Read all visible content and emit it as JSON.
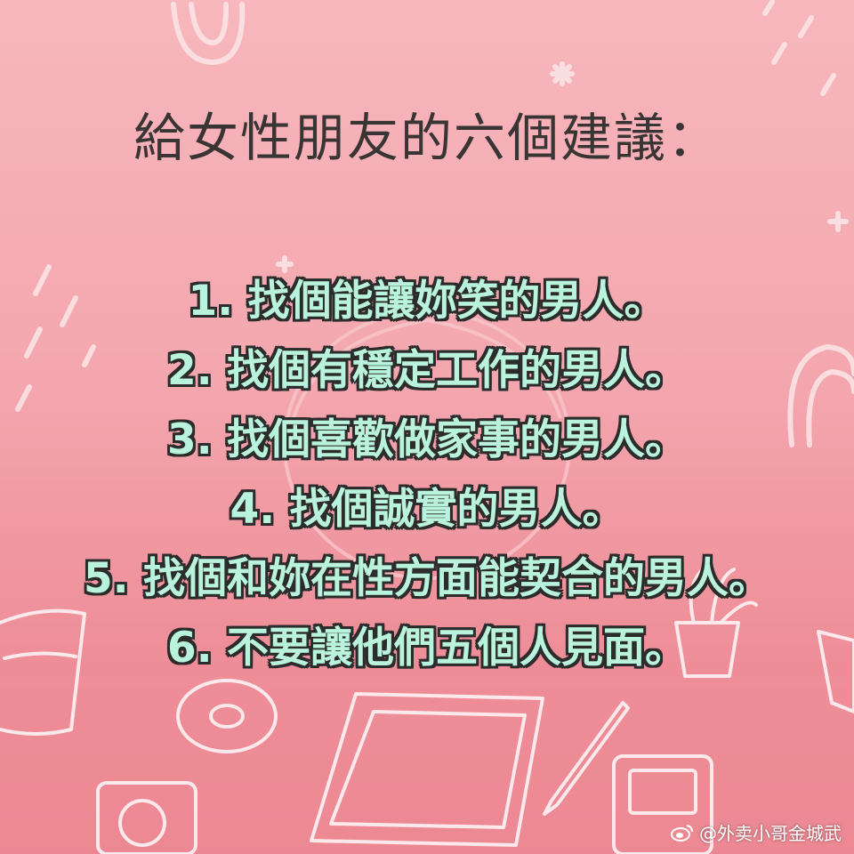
{
  "title": "給女性朋友的六個建議：",
  "tips": [
    "1. 找個能讓妳笑的男人。",
    "2. 找個有穩定工作的男人。",
    "3. 找個喜歡做家事的男人。",
    "4. 找個誠實的男人。",
    "5. 找個和妳在性方面能契合的男人。",
    "6. 不要讓他們五個人見面。"
  ],
  "watermark": "@外卖小哥金城武",
  "icons": {
    "watermark": "weibo-logo-icon"
  },
  "colors": {
    "background": "#f4a6ae",
    "title_text": "#3a3535",
    "tip_text": "#b9f3dd",
    "tip_outline": "#2c2c2c",
    "doodle_line": "#fbe3e5"
  }
}
